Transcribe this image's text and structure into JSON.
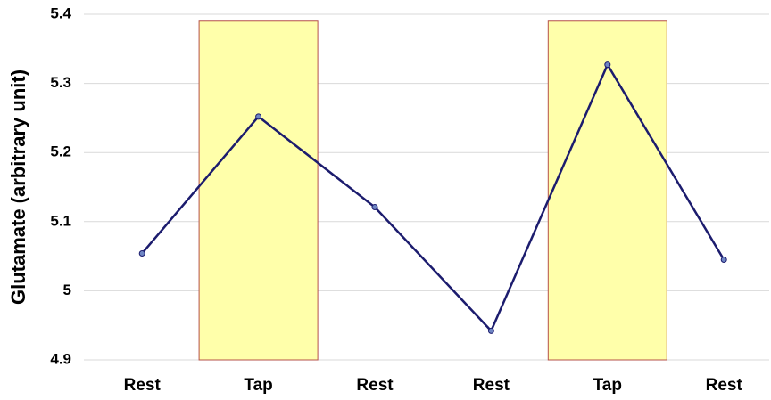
{
  "chart_data": {
    "type": "line",
    "y_label": "Glutamate (arbitrary unit)",
    "categories": [
      "Rest",
      "Tap",
      "Rest",
      "Rest",
      "Tap",
      "Rest"
    ],
    "series": [
      {
        "type": "bar",
        "color": "#ffffaa",
        "values": [
          null,
          5.39,
          null,
          null,
          5.39,
          null
        ]
      },
      {
        "type": "line",
        "color": "#1c1c6e",
        "values": [
          5.054,
          5.252,
          5.121,
          4.942,
          5.327,
          5.045
        ]
      }
    ],
    "ylim": [
      4.9,
      5.4
    ],
    "yticks": [
      4.9,
      5,
      5.1,
      5.2,
      5.3,
      5.4
    ],
    "grid": true
  }
}
